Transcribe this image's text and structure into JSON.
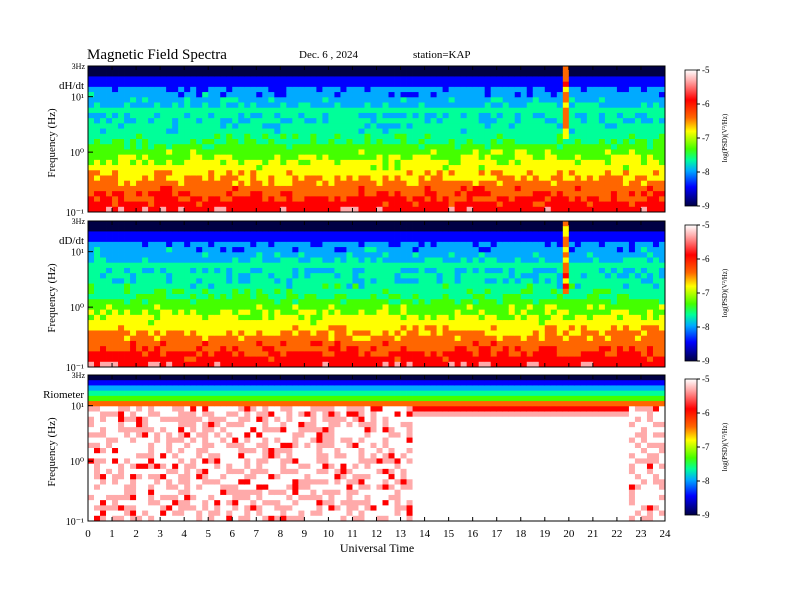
{
  "header": {
    "title": "Magnetic  Field  Spectra",
    "date": "Dec. 6  , 2024",
    "station": "station=KAP"
  },
  "chart_data": {
    "type": "heatmap",
    "xlabel": "Universal Time",
    "x_ticks": [
      "0",
      "1",
      "2",
      "3",
      "4",
      "5",
      "6",
      "7",
      "8",
      "9",
      "10",
      "11",
      "12",
      "13",
      "14",
      "15",
      "16",
      "17",
      "18",
      "19",
      "20",
      "21",
      "22",
      "23",
      "24"
    ],
    "xlim": [
      0,
      24
    ],
    "top_tick_label": "3Hz",
    "colorscale": [
      "#000044",
      "#0000ff",
      "#00aaff",
      "#00ff99",
      "#44ff00",
      "#ffff00",
      "#ff6600",
      "#ff0000",
      "#ffaaaa",
      "#ffffff"
    ],
    "panels": [
      {
        "name": "dH/dt",
        "ylabel": "Frequency  (Hz)",
        "y_ticks": [
          "10⁻¹",
          "10⁰",
          "10¹"
        ],
        "top_label": "3Hz",
        "colorbar_label": "log(PSD)(V²/Hz)",
        "colorbar_ticks": [
          "-5",
          "-6",
          "-7",
          "-8",
          "-9"
        ],
        "colorbar_range": [
          -9,
          -5
        ]
      },
      {
        "name": "dD/dt",
        "ylabel": "Frequency  (Hz)",
        "y_ticks": [
          "10⁻¹",
          "10⁰",
          "10¹"
        ],
        "top_label": "3Hz",
        "colorbar_label": "log(PSD)(V²/Hz)",
        "colorbar_ticks": [
          "-5",
          "-6",
          "-7",
          "-8",
          "-9"
        ],
        "colorbar_range": [
          -9,
          -5
        ]
      },
      {
        "name": "Riometer",
        "ylabel": "Frequency  (Hz)",
        "y_ticks": [
          "10⁻¹",
          "10⁰",
          "10¹"
        ],
        "top_label": "3Hz",
        "colorbar_label": "log(PSD)(V²/Hz)",
        "colorbar_ticks": [
          "-5",
          "-6",
          "-7",
          "-8",
          "-9"
        ],
        "colorbar_range": [
          -9,
          -5
        ]
      }
    ]
  }
}
